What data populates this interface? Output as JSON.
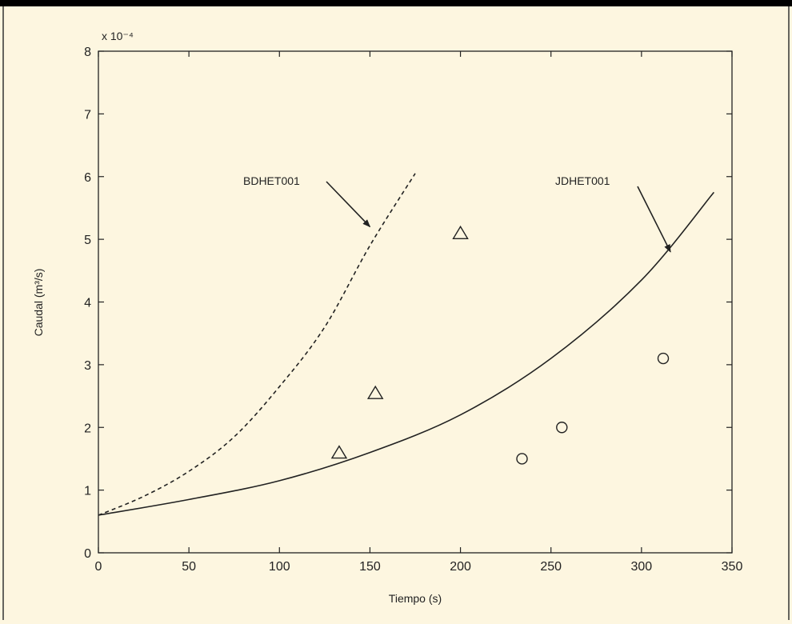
{
  "colors": {
    "background": "#fdf6e0",
    "top_bar": "#000000",
    "ink": "#222222"
  },
  "chart_data": {
    "type": "line",
    "title": "",
    "xlabel": "Tiempo (s)",
    "ylabel": "Caudal (m³/s)",
    "y_multiplier_label": "x 10⁻⁴",
    "xlim": [
      0,
      350
    ],
    "ylim": [
      0,
      8
    ],
    "x_ticks": [
      0,
      50,
      100,
      150,
      200,
      250,
      300,
      350
    ],
    "y_ticks": [
      0,
      1,
      2,
      3,
      4,
      5,
      6,
      7,
      8
    ],
    "grid": false,
    "series": [
      {
        "style": "dashed-line",
        "x": [
          0,
          25,
          50,
          75,
          100,
          125,
          150,
          175
        ],
        "y": [
          0.6,
          0.9,
          1.3,
          1.85,
          2.65,
          3.6,
          4.9,
          6.05
        ]
      },
      {
        "style": "solid-line",
        "x": [
          0,
          50,
          100,
          150,
          200,
          250,
          300,
          340
        ],
        "y": [
          0.6,
          0.85,
          1.15,
          1.6,
          2.2,
          3.1,
          4.35,
          5.75
        ]
      },
      {
        "style": "triangle-markers",
        "x": [
          133,
          153,
          200
        ],
        "y": [
          1.6,
          2.55,
          5.1
        ]
      },
      {
        "style": "circle-markers",
        "x": [
          234,
          256,
          312
        ],
        "y": [
          1.5,
          2.0,
          3.1
        ]
      }
    ],
    "annotations": [
      {
        "text": "BDHET001",
        "arrow_to": [
          150,
          5.2
        ]
      },
      {
        "text": "JDHET001",
        "arrow_to": [
          316,
          4.8
        ]
      }
    ]
  }
}
